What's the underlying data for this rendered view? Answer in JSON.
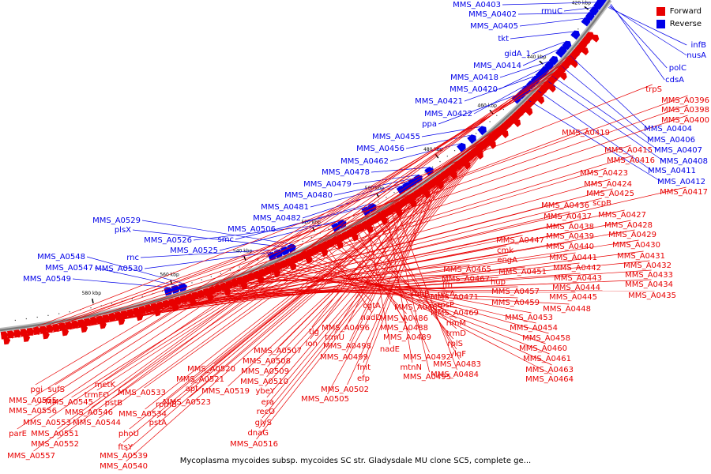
{
  "legend": {
    "forward_label": "Forward",
    "reverse_label": "Reverse",
    "forward_color": "#e80000",
    "reverse_color": "#0000e8"
  },
  "caption": "Mycoplasma mycoides subsp. mycoides SC str. Gladysdale MU clone SC5, complete ge...",
  "ticks": [
    "420 kbp",
    "440 kbp",
    "460 kbp",
    "480 kbp",
    "500 kbp",
    "520 kbp",
    "540 kbp",
    "560 kbp",
    "580 kbp"
  ],
  "reverse_genes": [
    "MMS_A0403",
    "rmuC",
    "MMS_A0402",
    "MMS_A0405",
    "tkt",
    "gidA_1",
    "MMS_A0414",
    "MMS_A0418",
    "MMS_A0420",
    "MMS_A0421",
    "MMS_A0422",
    "ppa",
    "MMS_A0455",
    "MMS_A0456",
    "MMS_A0462",
    "MMS_A0478",
    "MMS_A0479",
    "MMS_A0480",
    "MMS_A0481",
    "MMS_A0482",
    "MMS_A0506",
    "smc",
    "MMS_A0525",
    "MMS_A0526",
    "MMS_A0529",
    "plsX",
    "rnc",
    "MMS_A0530",
    "MMS_A0548",
    "MMS_A0547",
    "MMS_A0549",
    "infB",
    "nusA",
    "polC",
    "cdsA",
    "MMS_A0404",
    "MMS_A0406",
    "MMS_A0407",
    "MMS_A0408",
    "MMS_A0411",
    "MMS_A0412"
  ],
  "forward_genes": [
    "trpS",
    "MMS_A0396",
    "MMS_A0398",
    "MMS_A0400",
    "MMS_A0419",
    "MMS_A0415",
    "MMS_A0416",
    "MMS_A0417",
    "MMS_A0423",
    "MMS_A0424",
    "MMS_A0425",
    "scpB",
    "MMS_A0436",
    "MMS_A0427",
    "MMS_A0437",
    "MMS_A0428",
    "MMS_A0438",
    "MMS_A0429",
    "MMS_A0439",
    "MMS_A0430",
    "MMS_A0447",
    "MMS_A0440",
    "MMS_A0431",
    "cmk",
    "MMS_A0441",
    "engA",
    "MMS_A0442",
    "MMS_A0432",
    "MMS_A0451",
    "MMS_A0443",
    "MMS_A0433",
    "hup",
    "MMS_A0434",
    "MMS_A0444",
    "MMS_A0457",
    "MMS_A0445",
    "MMS_A0435",
    "MMS_A0459",
    "MMS_A0448",
    "MMS_A0465",
    "MMS_A0467",
    "ffh",
    "recA",
    "rnhB",
    "MMS_A0471",
    "rpsP",
    "MMS_A0469",
    "MMS_A0453",
    "MMS_A0454",
    "MMS_A0458",
    "MMS_A0460",
    "MMS_A0461",
    "MMS_A0463",
    "MMS_A0464",
    "cgtA",
    "nadD",
    "MMS_A0485",
    "MMS_A0486",
    "rimM",
    "MMS_A0488",
    "trmD",
    "MMS_A0489",
    "rplS",
    "nadE",
    "MMS_A0492",
    "ylqF",
    "MMS_A0483",
    "mtnN",
    "MMS_A0495",
    "MMS_A0484",
    "tig",
    "MMS_A0496",
    "lon",
    "trmU",
    "MMS_A0498",
    "MMS_A0499",
    "fmt",
    "efp",
    "MMS_A0502",
    "MMS_A0505",
    "MMS_A0507",
    "MMS_A0508",
    "MMS_A0509",
    "MMS_A0510",
    "ybeY",
    "era",
    "recO",
    "glyS",
    "dnaG",
    "MMS_A0516",
    "MMS_A0520",
    "MMS_A0521",
    "apt",
    "MMS_A0519",
    "MMS_A0523",
    "rpmB",
    "MMS_A0533",
    "metK",
    "trmFO",
    "MMS_A0545",
    "pstB",
    "MMS_A0534",
    "MMS_A0546",
    "MMS_A0544",
    "pstA",
    "phoU",
    "ftsY",
    "MMS_A0539",
    "MMS_A0540",
    "pgi",
    "sufS",
    "MMS_A0555",
    "MMS_A0556",
    "MMS_A0553",
    "parE",
    "MMS_A0551",
    "MMS_A0552",
    "MMS_A0557"
  ]
}
